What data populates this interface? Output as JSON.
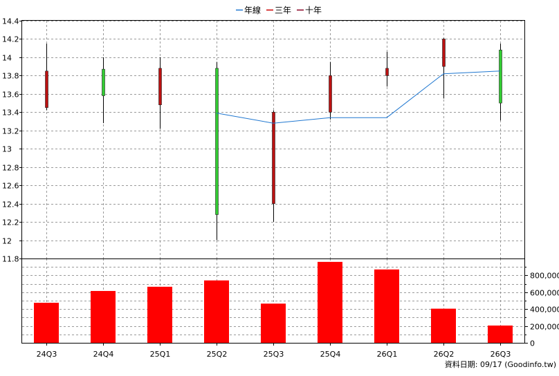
{
  "legend": {
    "items": [
      {
        "label": "年線",
        "color": "#1f77d0"
      },
      {
        "label": "三年",
        "color": "#cc0000"
      },
      {
        "label": "十年",
        "color": "#880022"
      }
    ]
  },
  "footer": {
    "note": "資料日期: 09/17  (Goodinfo.tw)"
  },
  "colors": {
    "up": "#33cc33",
    "down": "#bb1111",
    "volume": "#ff0000",
    "line": "#1f77d0",
    "grid": "#999999"
  },
  "chart_data": [
    {
      "type": "candlestick",
      "categories": [
        "24Q3",
        "24Q4",
        "25Q1",
        "25Q2",
        "25Q3",
        "25Q4",
        "26Q1",
        "26Q2",
        "26Q3"
      ],
      "ohlc": [
        {
          "open": 13.85,
          "high": 14.15,
          "low": 13.42,
          "close": 13.45,
          "dir": "down"
        },
        {
          "open": 13.58,
          "high": 14.0,
          "low": 13.28,
          "close": 13.87,
          "dir": "up"
        },
        {
          "open": 13.88,
          "high": 14.0,
          "low": 13.22,
          "close": 13.48,
          "dir": "down"
        },
        {
          "open": 12.28,
          "high": 13.95,
          "low": 12.0,
          "close": 13.88,
          "dir": "up"
        },
        {
          "open": 13.4,
          "high": 13.42,
          "low": 12.2,
          "close": 12.4,
          "dir": "down"
        },
        {
          "open": 13.8,
          "high": 13.95,
          "low": 13.32,
          "close": 13.4,
          "dir": "down"
        },
        {
          "open": 13.88,
          "high": 14.06,
          "low": 13.68,
          "close": 13.8,
          "dir": "down"
        },
        {
          "open": 14.2,
          "high": 14.21,
          "low": 13.55,
          "close": 13.9,
          "dir": "down"
        },
        {
          "open": 13.5,
          "high": 14.15,
          "low": 13.31,
          "close": 14.08,
          "dir": "up"
        }
      ],
      "series": [
        {
          "name": "年線",
          "values": [
            null,
            null,
            null,
            13.39,
            13.28,
            13.34,
            13.34,
            13.82,
            13.85
          ]
        }
      ],
      "yticks": [
        "14.4",
        "14.2",
        "14",
        "13.8",
        "13.6",
        "13.4",
        "13.2",
        "13",
        "12.8",
        "12.6",
        "12.4",
        "12.2",
        "12",
        "11.8"
      ],
      "ylim": [
        11.8,
        14.4
      ]
    },
    {
      "type": "bar",
      "categories": [
        "24Q3",
        "24Q4",
        "25Q1",
        "25Q2",
        "25Q3",
        "25Q4",
        "26Q1",
        "26Q2",
        "26Q3"
      ],
      "values": [
        475000,
        615000,
        665000,
        740000,
        465000,
        960000,
        870000,
        405000,
        205000
      ],
      "yticks": [
        "800,000",
        "600,000",
        "400,000",
        "200,000",
        "0"
      ],
      "ylim": [
        0,
        1000000
      ]
    }
  ]
}
